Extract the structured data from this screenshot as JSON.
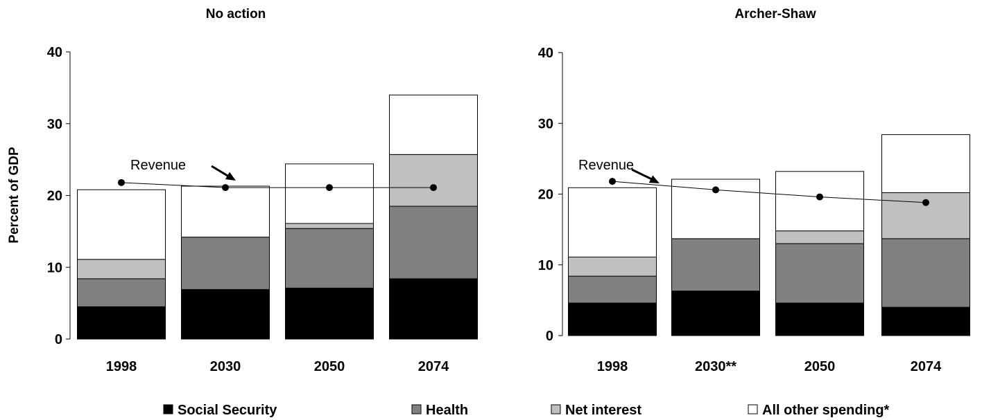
{
  "colors": {
    "social_security": "#000000",
    "health": "#808080",
    "net_interest": "#c0c0c0",
    "all_other": "#ffffff"
  },
  "legend": {
    "items": [
      {
        "label": "Social Security",
        "color": "#000000"
      },
      {
        "label": "Health",
        "color": "#808080"
      },
      {
        "label": "Net interest",
        "color": "#c0c0c0"
      },
      {
        "label": "All other spending*",
        "color": "#ffffff"
      }
    ]
  },
  "chart_data": [
    {
      "type": "bar",
      "stacked": true,
      "title": "No action",
      "ylabel": "Percent of GDP",
      "xlabel": "",
      "ylim": [
        0,
        40
      ],
      "yticks": [
        0,
        10,
        20,
        30,
        40
      ],
      "categories": [
        "1998",
        "2030",
        "2050",
        "2074"
      ],
      "series": [
        {
          "name": "Social Security",
          "values": [
            4.5,
            6.9,
            7.1,
            8.4
          ]
        },
        {
          "name": "Health",
          "values": [
            3.9,
            7.3,
            8.3,
            10.1
          ]
        },
        {
          "name": "Net interest",
          "values": [
            2.7,
            0,
            0.7,
            7.2
          ]
        },
        {
          "name": "All other spending*",
          "values": [
            9.7,
            7.1,
            8.3,
            8.3
          ]
        }
      ],
      "revenue": {
        "label": "Revenue",
        "values": [
          21.8,
          21.1,
          21.1,
          21.1
        ]
      }
    },
    {
      "type": "bar",
      "stacked": true,
      "title": "Archer-Shaw",
      "ylabel": "",
      "xlabel": "",
      "ylim": [
        0,
        40
      ],
      "yticks": [
        0,
        10,
        20,
        30,
        40
      ],
      "categories": [
        "1998",
        "2030**",
        "2050",
        "2074"
      ],
      "series": [
        {
          "name": "Social Security",
          "values": [
            4.6,
            6.3,
            4.6,
            4.0
          ]
        },
        {
          "name": "Health",
          "values": [
            3.8,
            7.4,
            8.4,
            9.7
          ]
        },
        {
          "name": "Net interest",
          "values": [
            2.7,
            0,
            1.8,
            6.5
          ]
        },
        {
          "name": "All other spending*",
          "values": [
            9.8,
            8.4,
            8.4,
            8.2
          ]
        }
      ],
      "revenue": {
        "label": "Revenue",
        "values": [
          21.8,
          20.6,
          19.6,
          18.8
        ]
      }
    }
  ]
}
